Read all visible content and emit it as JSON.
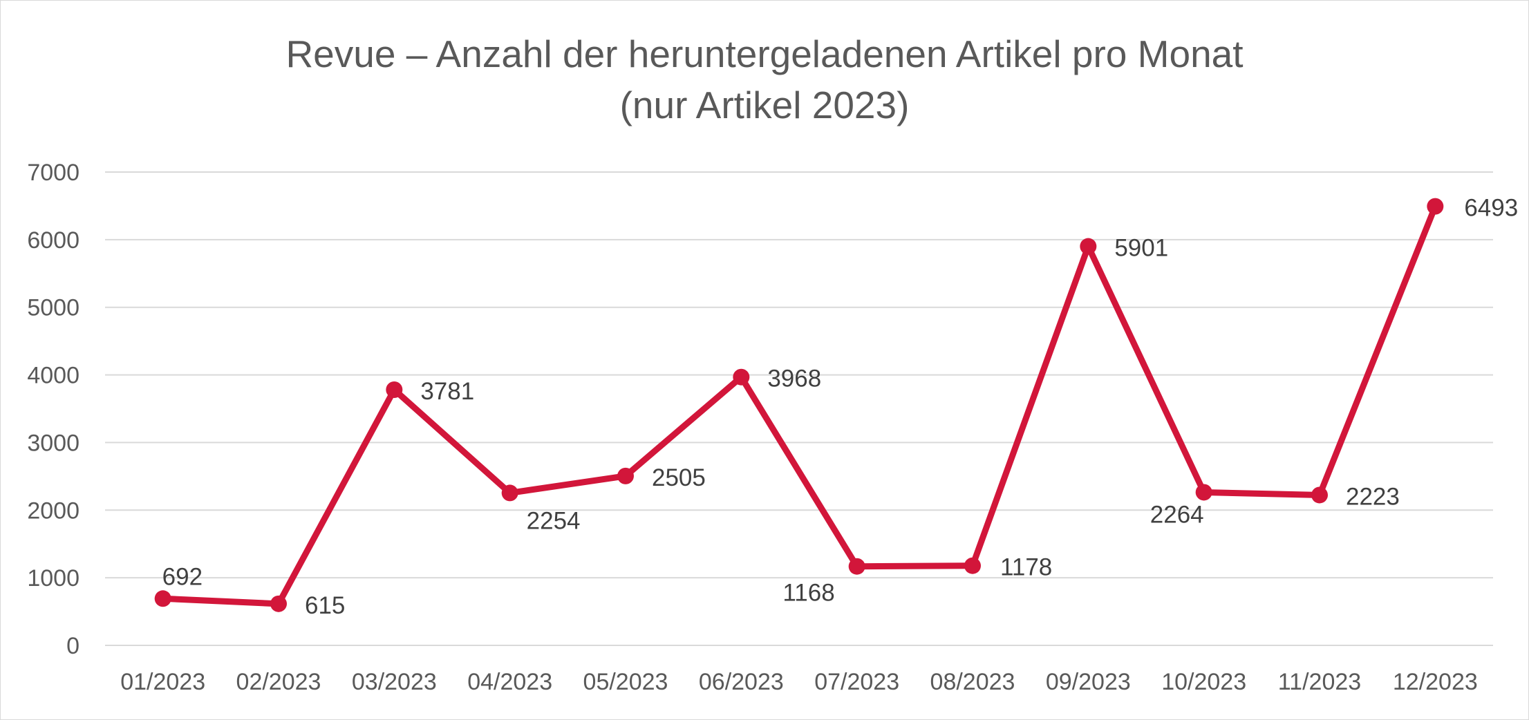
{
  "chart_data": {
    "type": "line",
    "title": "Revue – Anzahl der heruntergeladenen Artikel pro Monat",
    "subtitle": "(nur Artikel 2023)",
    "categories": [
      "01/2023",
      "02/2023",
      "03/2023",
      "04/2023",
      "05/2023",
      "06/2023",
      "07/2023",
      "08/2023",
      "09/2023",
      "10/2023",
      "11/2023",
      "12/2023"
    ],
    "series": [
      {
        "values": [
          692,
          615,
          3781,
          2254,
          2505,
          3968,
          1168,
          1178,
          5901,
          2264,
          2223,
          6493
        ],
        "color": "#d2163a"
      }
    ],
    "ylim": [
      0,
      7000
    ],
    "yticks": [
      "0",
      "1000",
      "2000",
      "3000",
      "4000",
      "5000",
      "6000",
      "7000"
    ],
    "grid": true,
    "data_labels": true,
    "legend": "none",
    "colors": {
      "line": "#d2163a",
      "grid": "#d9d9d9",
      "axis_text": "#595959",
      "label_text": "#404040"
    }
  }
}
